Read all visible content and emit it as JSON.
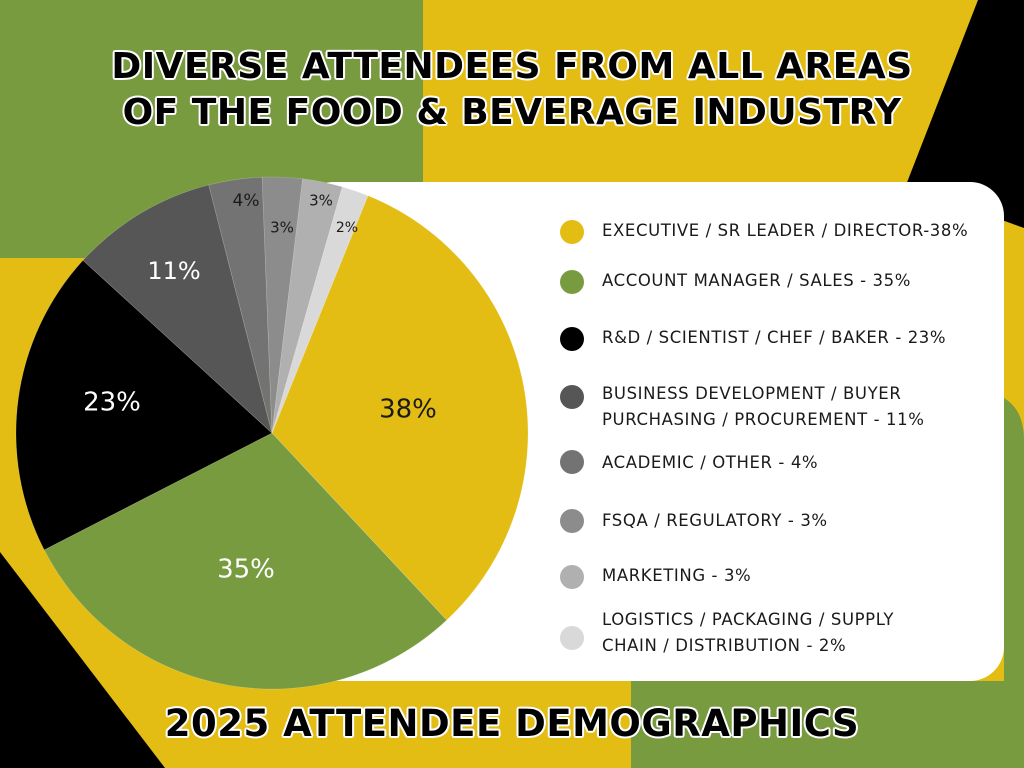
{
  "header": {
    "title_line1": "DIVERSE ATTENDEES FROM ALL AREAS",
    "title_line2": "OF THE FOOD & BEVERAGE INDUSTRY"
  },
  "footer": {
    "title": "2025 ATTENDEE DEMOGRAPHICS"
  },
  "colors": {
    "yellow": "#e3bd14",
    "green": "#799b40",
    "black": "#000000",
    "white": "#ffffff"
  },
  "chart_data": {
    "type": "pie",
    "title": "2025 ATTENDEE DEMOGRAPHICS",
    "slices": [
      {
        "label": "EXECUTIVE / SR LEADER / DIRECTOR",
        "legend": "EXECUTIVE / SR LEADER / DIRECTOR-38%",
        "value": 38,
        "data_label": "38%",
        "color": "#e3bd14",
        "label_color": "#1a1a1a"
      },
      {
        "label": "ACCOUNT MANAGER / SALES",
        "legend": "ACCOUNT MANAGER / SALES - 35%",
        "value": 35,
        "data_label": "35%",
        "color": "#799b40",
        "label_color": "#ffffff"
      },
      {
        "label": "R&D / SCIENTIST / CHEF / BAKER",
        "legend": "R&D / SCIENTIST / CHEF / BAKER - 23%",
        "value": 23,
        "data_label": "23%",
        "color": "#000000",
        "label_color": "#ffffff"
      },
      {
        "label": "BUSINESS DEVELOPMENT / BUYER PURCHASING / PROCUREMENT",
        "legend": "BUSINESS DEVELOPMENT / BUYER\nPURCHASING / PROCUREMENT - 11%",
        "value": 11,
        "data_label": "11%",
        "color": "#565656",
        "label_color": "#ffffff"
      },
      {
        "label": "ACADEMIC / OTHER",
        "legend": "ACADEMIC / OTHER - 4%",
        "value": 4,
        "data_label": "4%",
        "color": "#737373",
        "label_color": "#1a1a1a"
      },
      {
        "label": "FSQA / REGULATORY",
        "legend": "FSQA / REGULATORY - 3%",
        "value": 3,
        "data_label": "3%",
        "color": "#8c8c8c",
        "label_color": "#1a1a1a"
      },
      {
        "label": "MARKETING",
        "legend": "MARKETING - 3%",
        "value": 3,
        "data_label": "3%",
        "color": "#b0b0b0",
        "label_color": "#1a1a1a"
      },
      {
        "label": "LOGISTICS / PACKAGING / SUPPLY CHAIN / DISTRIBUTION",
        "legend": "LOGISTICS / PACKAGING / SUPPLY\nCHAIN / DISTRIBUTION - 2%",
        "value": 2,
        "data_label": "2%",
        "color": "#d9d9d9",
        "label_color": "#1a1a1a"
      }
    ],
    "legend_position": "right"
  }
}
